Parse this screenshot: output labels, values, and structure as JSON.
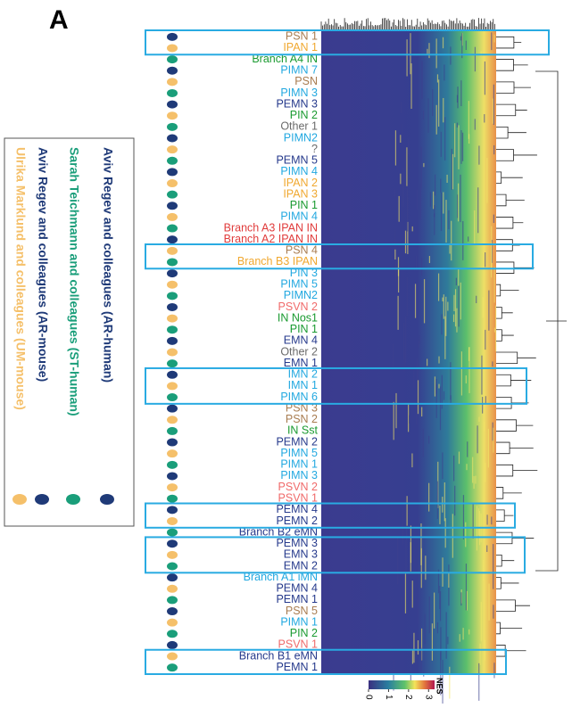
{
  "panel": "A",
  "legend": [
    {
      "text": "Ulrika Marklund and colleagues (UM-mouse)",
      "color": "#f5c06a"
    },
    {
      "text": "Aviv Regev and colleagues (AR-mouse)",
      "color": "#1f3a78"
    },
    {
      "text": "Sarah Teichmann and colleagues (ST-human)",
      "color": "#1a9e7a"
    },
    {
      "text": "Aviv Regev and colleagues (AR-human)",
      "color": "#1f3a78"
    }
  ],
  "rows": [
    {
      "label": "PSN 1",
      "color": "#a87c50"
    },
    {
      "label": "IPAN 1",
      "color": "#f0a830"
    },
    {
      "label": "Branch A4 IN",
      "color": "#1a9a30"
    },
    {
      "label": "PIMN 7",
      "color": "#22a8e0"
    },
    {
      "label": "PSN",
      "color": "#a87c50"
    },
    {
      "label": "PIMN 3",
      "color": "#22a8e0"
    },
    {
      "label": "PEMN 3",
      "color": "#263a8c"
    },
    {
      "label": "PIN 2",
      "color": "#1a9a30"
    },
    {
      "label": "Other 1",
      "color": "#6b6b6b"
    },
    {
      "label": "PIMN2",
      "color": "#22a8e0"
    },
    {
      "label": "?",
      "color": "#6b6b6b"
    },
    {
      "label": "PEMN 5",
      "color": "#263a8c"
    },
    {
      "label": "PIMN 4",
      "color": "#22a8e0"
    },
    {
      "label": "IPAN 2",
      "color": "#f0a830"
    },
    {
      "label": "IPAN 3",
      "color": "#f0a830"
    },
    {
      "label": "PIN 1",
      "color": "#1a9a30"
    },
    {
      "label": "PIMN 4",
      "color": "#22a8e0"
    },
    {
      "label": "Branch A3  IPAN IN",
      "color": "#e03c3c"
    },
    {
      "label": "Branch A2  IPAN IN",
      "color": "#e03c3c"
    },
    {
      "label": "PSN 4",
      "color": "#a87c50"
    },
    {
      "label": "Branch B3 IPAN",
      "color": "#f0a830"
    },
    {
      "label": "PIN 3",
      "color": "#22a8e0"
    },
    {
      "label": "PIMN 5",
      "color": "#22a8e0"
    },
    {
      "label": "PIMN2",
      "color": "#22a8e0"
    },
    {
      "label": "PSVN 2",
      "color": "#f06a6a"
    },
    {
      "label": "IN Nos1",
      "color": "#1a9a30"
    },
    {
      "label": "PIN 1",
      "color": "#1a9a30"
    },
    {
      "label": "EMN 4",
      "color": "#263a8c"
    },
    {
      "label": "Other 2",
      "color": "#6b6b6b"
    },
    {
      "label": "EMN 1",
      "color": "#263a8c"
    },
    {
      "label": "IMN 2",
      "color": "#22a8e0"
    },
    {
      "label": "IMN 1",
      "color": "#22a8e0"
    },
    {
      "label": "PIMN 6",
      "color": "#22a8e0"
    },
    {
      "label": "PSN 3",
      "color": "#a87c50"
    },
    {
      "label": "PSN 2",
      "color": "#a87c50"
    },
    {
      "label": "IN Sst",
      "color": "#1a9a30"
    },
    {
      "label": "PEMN 2",
      "color": "#263a8c"
    },
    {
      "label": "PIMN 5",
      "color": "#22a8e0"
    },
    {
      "label": "PIMN 1",
      "color": "#22a8e0"
    },
    {
      "label": "PIMN 3",
      "color": "#22a8e0"
    },
    {
      "label": "PSVN 2",
      "color": "#f06a6a"
    },
    {
      "label": "PSVN 1",
      "color": "#f06a6a"
    },
    {
      "label": "PEMN 4",
      "color": "#263a8c"
    },
    {
      "label": "PEMN 2",
      "color": "#263a8c"
    },
    {
      "label": "Branch B2 eMN",
      "color": "#263a8c"
    },
    {
      "label": "PEMN 3",
      "color": "#263a8c"
    },
    {
      "label": "EMN 3",
      "color": "#263a8c"
    },
    {
      "label": "EMN 2",
      "color": "#263a8c"
    },
    {
      "label": "Branch A1 iMN",
      "color": "#22a8e0"
    },
    {
      "label": "PEMN 4",
      "color": "#263a8c"
    },
    {
      "label": "PEMN 1",
      "color": "#263a8c"
    },
    {
      "label": "PSN 5",
      "color": "#a87c50"
    },
    {
      "label": "PIMN 1",
      "color": "#22a8e0"
    },
    {
      "label": "PIN 2",
      "color": "#1a9a30"
    },
    {
      "label": "PSVN 1",
      "color": "#f06a6a"
    },
    {
      "label": "Branch B1 eMN",
      "color": "#263a8c"
    },
    {
      "label": "PEMN 1",
      "color": "#263a8c"
    }
  ],
  "colorbar": {
    "title": "NES",
    "lim": [
      0,
      3.3
    ],
    "ticks": [
      0,
      1,
      2,
      3
    ]
  }
}
